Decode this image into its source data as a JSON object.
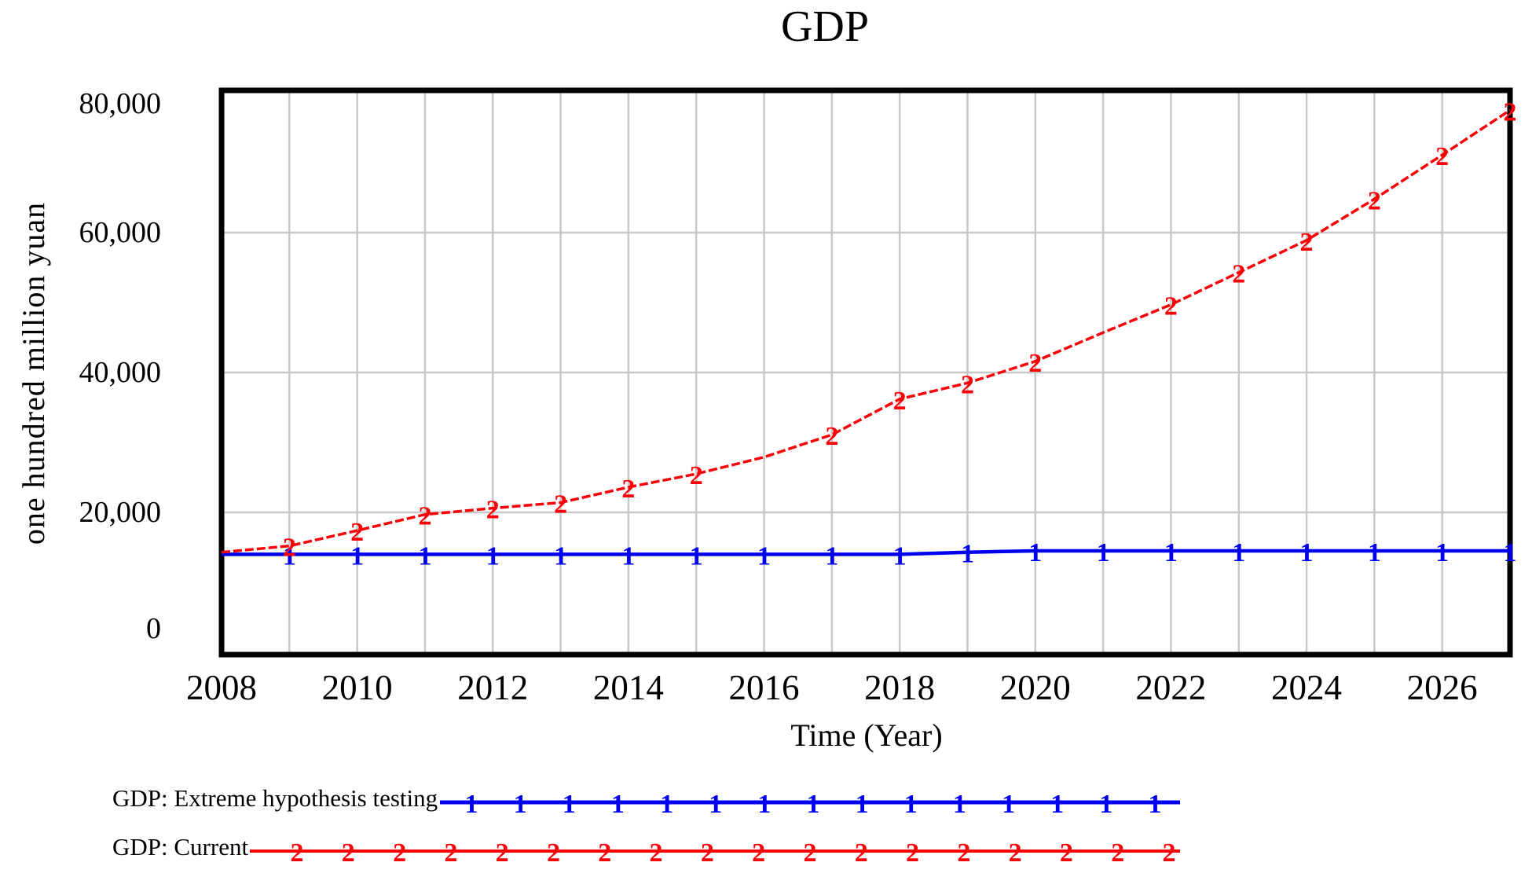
{
  "title": "GDP",
  "y_axis": {
    "label": "one hundred million yuan",
    "ticks": [
      {
        "label": "80,000",
        "value": 80000
      },
      {
        "label": "60,000",
        "value": 60000
      },
      {
        "label": "40,000",
        "value": 40000
      },
      {
        "label": "20,000",
        "value": 20000
      },
      {
        "label": "0",
        "value": 0
      }
    ]
  },
  "x_axis": {
    "label": "Time (Year)",
    "ticks": [
      {
        "label": "2008",
        "value": 2008
      },
      {
        "label": "2010",
        "value": 2010
      },
      {
        "label": "2012",
        "value": 2012
      },
      {
        "label": "2014",
        "value": 2014
      },
      {
        "label": "2016",
        "value": 2016
      },
      {
        "label": "2018",
        "value": 2018
      },
      {
        "label": "2020",
        "value": 2020
      },
      {
        "label": "2022",
        "value": 2022
      },
      {
        "label": "2024",
        "value": 2024
      },
      {
        "label": "2026",
        "value": 2026
      }
    ]
  },
  "legend": {
    "items": [
      {
        "label": "GDP: Extreme hypothesis testing",
        "marker": "1",
        "color": "#0000ee"
      },
      {
        "label": "GDP: Current",
        "marker": "2",
        "color": "#fb0006"
      }
    ]
  },
  "colors": {
    "blue_series": "#0000ee",
    "red_series": "#fb0006",
    "gridline": "#c8c8c8",
    "frame": "#000000"
  },
  "chart_data": {
    "type": "line",
    "title": "GDP",
    "xlabel": "Time (Year)",
    "ylabel": "one hundred million yuan",
    "xlim": [
      2008,
      2027
    ],
    "ylim": [
      0,
      80000
    ],
    "grid": true,
    "x": [
      2008,
      2009,
      2010,
      2011,
      2012,
      2013,
      2014,
      2015,
      2016,
      2017,
      2018,
      2019,
      2020,
      2021,
      2022,
      2023,
      2024,
      2025,
      2026,
      2027
    ],
    "series": [
      {
        "name": "GDP: Extreme hypothesis testing",
        "marker": "1",
        "color": "#0000ee",
        "values": [
          14000,
          14000,
          14000,
          14000,
          14000,
          14000,
          14000,
          14000,
          14000,
          14000,
          14000,
          14300,
          14500,
          14500,
          14500,
          14500,
          14500,
          14500,
          14500,
          14500
        ],
        "marker_years": [
          2009,
          2010,
          2011,
          2012,
          2013,
          2014,
          2015,
          2016,
          2017,
          2018,
          2019,
          2020,
          2021,
          2022,
          2023,
          2024,
          2025,
          2026,
          2027
        ]
      },
      {
        "name": "GDP: Current",
        "marker": "2",
        "color": "#fb0006",
        "values": [
          14300,
          15200,
          17400,
          19700,
          20600,
          21400,
          23600,
          25500,
          27900,
          31100,
          36200,
          38500,
          41600,
          45700,
          49700,
          54300,
          58900,
          64800,
          71100,
          77500
        ],
        "marker_years": [
          2009,
          2010,
          2011,
          2012,
          2013,
          2014,
          2015,
          2017,
          2018,
          2019,
          2020,
          2022,
          2023,
          2024,
          2025,
          2026,
          2027
        ]
      }
    ]
  }
}
